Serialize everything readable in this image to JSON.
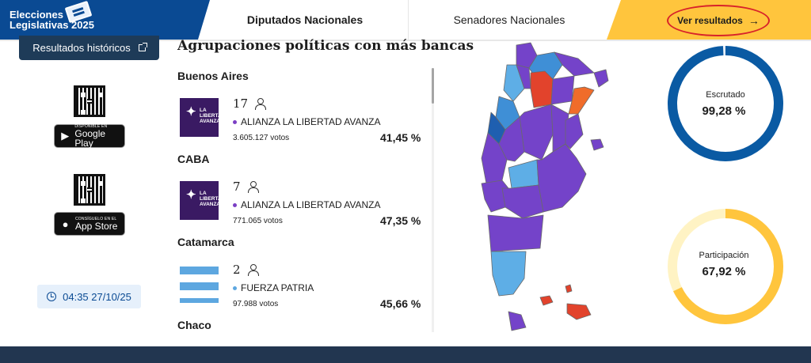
{
  "header": {
    "brand_line1": "Elecciones",
    "brand_line2": "Legislativas 2025",
    "tab_diputados": "Diputados Nacionales",
    "tab_senadores": "Senadores Nacionales",
    "results_label": "Ver resultados",
    "results_arrow": "→",
    "active_tab": "Diputados Nacionales",
    "colors": {
      "brand": "#0a4a93",
      "results": "#ffc53d",
      "highlight": "#d8232a"
    }
  },
  "sidebar": {
    "historic_label": "Resultados históricos",
    "google_small": "DISPONIBLE EN",
    "google_big": "Google Play",
    "apple_small": "Consíguelo en el",
    "apple_big": "App Store",
    "timestamp": "04:35 27/10/25"
  },
  "list": {
    "title": "Agrupaciones políticas con más bancas",
    "entries": [
      {
        "province": "Buenos Aires",
        "seats": "17",
        "party": "ALIANZA LA LIBERTAD AVANZA",
        "votes": "3.605.127 votos",
        "percent": "41,45 %",
        "logo_text": "LA LIBERTAD AVANZA",
        "party_color": "#7b3fc4"
      },
      {
        "province": "CABA",
        "seats": "7",
        "party": "ALIANZA LA LIBERTAD AVANZA",
        "votes": "771.065 votos",
        "percent": "47,35 %",
        "logo_text": "LA LIBERTAD AVANZA",
        "party_color": "#7b3fc4"
      },
      {
        "province": "Catamarca",
        "seats": "2",
        "party": "FUERZA PATRIA",
        "votes": "97.988 votos",
        "percent": "45,66 %",
        "party_color": "#5da7e0"
      },
      {
        "province": "Chaco"
      }
    ]
  },
  "stats": {
    "scrutinized_label": "Escrutado",
    "scrutinized_value": "99,28 %",
    "scrutinized_fraction": 0.9928,
    "participation_label": "Participación",
    "participation_value": "67,92 %",
    "participation_fraction": 0.6792,
    "colors": {
      "scrutinized": "#0a5aa3",
      "participation": "#ffc53d",
      "participation_track": "#fff3c4"
    }
  },
  "map_colors": {
    "lla": "#7443c9",
    "fp_light": "#5eaee6",
    "fp_mid": "#3f8fd6",
    "fp_dark": "#1f5fb0",
    "red": "#e2432c",
    "orange": "#f06c2a"
  }
}
